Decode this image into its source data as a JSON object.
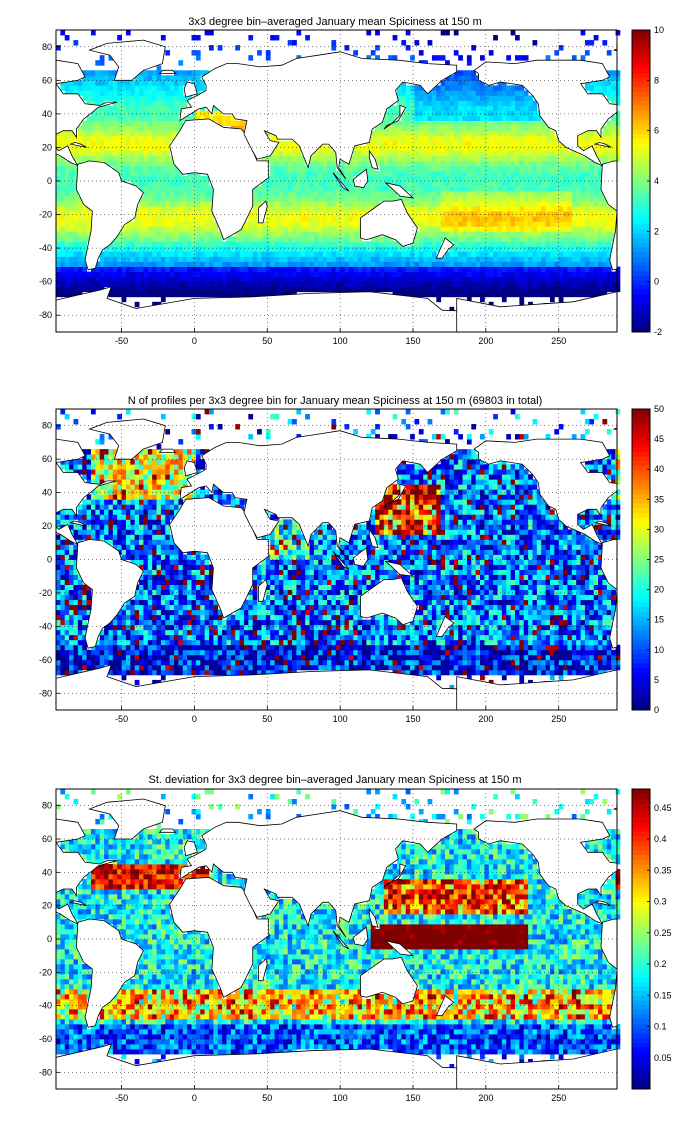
{
  "panels": [
    {
      "title": "3x3 degree bin–averaged January mean Spiciness at 150 m",
      "colorbar": {
        "min": -2,
        "max": 10,
        "ticks": [
          "10",
          "8",
          "6",
          "4",
          "2",
          "0",
          "-2"
        ]
      },
      "field": "spiciness"
    },
    {
      "title": "N of profiles per 3x3 degree bin for January mean Spiciness at 150 m (69803 in total)",
      "colorbar": {
        "min": 0,
        "max": 50,
        "ticks": [
          "50",
          "45",
          "40",
          "35",
          "30",
          "25",
          "20",
          "15",
          "10",
          "5",
          "0"
        ]
      },
      "field": "count"
    },
    {
      "title": "St. deviation for 3x3 degree bin–averaged January mean Spiciness at 150 m",
      "colorbar": {
        "min": 0,
        "max": 0.48,
        "ticks": [
          "0.45",
          "0.4",
          "0.35",
          "0.3",
          "0.25",
          "0.2",
          "0.15",
          "0.1",
          "0.05"
        ]
      },
      "field": "std"
    }
  ],
  "x_ticks": [
    "-50",
    "0",
    "50",
    "100",
    "150",
    "200",
    "250"
  ],
  "y_ticks": [
    "80",
    "60",
    "40",
    "20",
    "0",
    "-20",
    "-40",
    "-60",
    "-80"
  ],
  "chart_data": [
    {
      "type": "heatmap",
      "title": "3x3 degree bin–averaged January mean Spiciness at 150 m",
      "xlim": [
        -95,
        290
      ],
      "ylim": [
        -90,
        90
      ],
      "x_ticks": [
        -50,
        0,
        50,
        100,
        150,
        200,
        250
      ],
      "y_ticks": [
        80,
        60,
        40,
        20,
        0,
        -20,
        -40,
        -60,
        -80
      ],
      "bin_size_deg": 3,
      "colorbar": {
        "range": [
          -2,
          10
        ],
        "colormap": "jet",
        "ticks": [
          10,
          8,
          6,
          4,
          2,
          0,
          -2
        ]
      },
      "grid": true,
      "approx_values": {
        "subtropical_bands": 5,
        "equatorial": 3,
        "north_pacific_30N": 4,
        "southern_ocean": 0,
        "antarctic_margin": -1.5,
        "med_red_sea": 8
      }
    },
    {
      "type": "heatmap",
      "title": "N of profiles per 3x3 degree bin for January mean Spiciness at 150 m (69803 in total)",
      "xlim": [
        -95,
        290
      ],
      "ylim": [
        -90,
        90
      ],
      "x_ticks": [
        -50,
        0,
        50,
        100,
        150,
        200,
        250
      ],
      "y_ticks": [
        80,
        60,
        40,
        20,
        0,
        -20,
        -40,
        -60,
        -80
      ],
      "bin_size_deg": 3,
      "total_profiles": 69803,
      "colorbar": {
        "range": [
          0,
          50
        ],
        "colormap": "jet",
        "ticks": [
          50,
          45,
          40,
          35,
          30,
          25,
          20,
          15,
          10,
          5,
          0
        ]
      },
      "grid": true,
      "approx_values": {
        "open_ocean": 15,
        "kuroshio_region": 50,
        "north_atlantic": 30,
        "southern_ocean": 8
      }
    },
    {
      "type": "heatmap",
      "title": "St. deviation for 3x3 degree bin–averaged January mean Spiciness at 150 m",
      "xlim": [
        -95,
        290
      ],
      "ylim": [
        -90,
        90
      ],
      "x_ticks": [
        -50,
        0,
        50,
        100,
        150,
        200,
        250
      ],
      "y_ticks": [
        80,
        60,
        40,
        20,
        0,
        -20,
        -40,
        -60,
        -80
      ],
      "bin_size_deg": 3,
      "colorbar": {
        "range": [
          0,
          0.48
        ],
        "colormap": "jet",
        "ticks": [
          0.45,
          0.4,
          0.35,
          0.3,
          0.25,
          0.2,
          0.15,
          0.1,
          0.05
        ]
      },
      "grid": true,
      "approx_values": {
        "western_pacific_equatorial": 0.48,
        "subtropical_fronts": 0.4,
        "southern_ocean": 0.1
      }
    }
  ]
}
